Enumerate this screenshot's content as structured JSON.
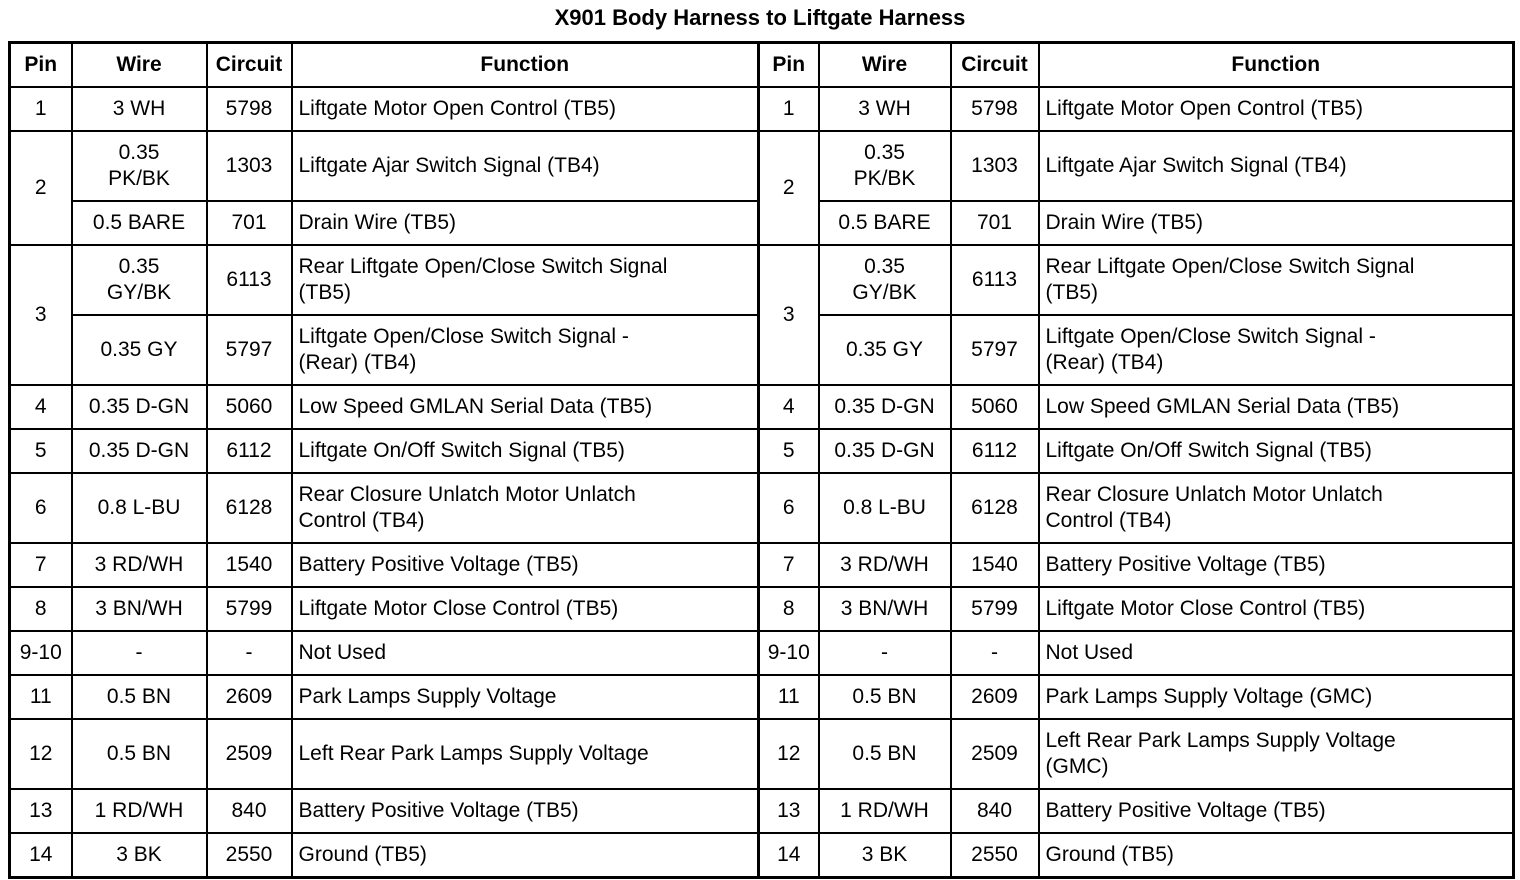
{
  "title": "X901 Body Harness to Liftgate Harness",
  "table": {
    "headers": [
      "Pin",
      "Wire",
      "Circuit",
      "Function",
      "Pin",
      "Wire",
      "Circuit",
      "Function"
    ],
    "rows": [
      [
        "1",
        "3 WH",
        "5798",
        "Liftgate Motor Open Control (TB5)",
        "1",
        "3 WH",
        "5798",
        "Liftgate Motor Open Control (TB5)"
      ],
      [
        {
          "text": "2",
          "rowspan": 2
        },
        "0.35\nPK/BK",
        "1303",
        "Liftgate Ajar Switch Signal (TB4)",
        {
          "text": "2",
          "rowspan": 2
        },
        "0.35\nPK/BK",
        "1303",
        "Liftgate Ajar Switch Signal (TB4)"
      ],
      [
        "0.5 BARE",
        "701",
        "Drain Wire (TB5)",
        "0.5 BARE",
        "701",
        "Drain Wire (TB5)"
      ],
      [
        {
          "text": "3",
          "rowspan": 2
        },
        "0.35\nGY/BK",
        "6113",
        "Rear Liftgate Open/Close Switch Signal\n(TB5)",
        {
          "text": "3",
          "rowspan": 2
        },
        "0.35\nGY/BK",
        "6113",
        "Rear Liftgate Open/Close Switch Signal\n(TB5)"
      ],
      [
        "0.35 GY",
        "5797",
        "Liftgate Open/Close Switch Signal -\n(Rear) (TB4)",
        "0.35 GY",
        "5797",
        "Liftgate Open/Close Switch Signal -\n(Rear) (TB4)"
      ],
      [
        "4",
        "0.35 D-GN",
        "5060",
        "Low Speed GMLAN Serial Data (TB5)",
        "4",
        "0.35 D-GN",
        "5060",
        "Low Speed GMLAN Serial Data (TB5)"
      ],
      [
        "5",
        "0.35 D-GN",
        "6112",
        "Liftgate On/Off Switch Signal (TB5)",
        "5",
        "0.35 D-GN",
        "6112",
        "Liftgate On/Off Switch Signal (TB5)"
      ],
      [
        "6",
        "0.8 L-BU",
        "6128",
        "Rear Closure Unlatch Motor Unlatch\nControl (TB4)",
        "6",
        "0.8 L-BU",
        "6128",
        "Rear Closure Unlatch Motor Unlatch\nControl (TB4)"
      ],
      [
        "7",
        "3 RD/WH",
        "1540",
        "Battery Positive Voltage (TB5)",
        "7",
        "3 RD/WH",
        "1540",
        "Battery Positive Voltage (TB5)"
      ],
      [
        "8",
        "3 BN/WH",
        "5799",
        "Liftgate Motor Close Control (TB5)",
        "8",
        "3 BN/WH",
        "5799",
        "Liftgate Motor Close Control (TB5)"
      ],
      [
        "9-10",
        "-",
        "-",
        "Not Used",
        "9-10",
        "-",
        "-",
        "Not Used"
      ],
      [
        "11",
        "0.5 BN",
        "2609",
        "Park Lamps Supply Voltage",
        "11",
        "0.5 BN",
        "2609",
        "Park Lamps Supply Voltage (GMC)"
      ],
      [
        "12",
        "0.5 BN",
        "2509",
        "Left Rear Park Lamps Supply Voltage",
        "12",
        "0.5 BN",
        "2509",
        "Left Rear Park Lamps Supply Voltage\n(GMC)"
      ],
      [
        "13",
        "1 RD/WH",
        "840",
        "Battery Positive Voltage (TB5)",
        "13",
        "1 RD/WH",
        "840",
        "Battery Positive Voltage (TB5)"
      ],
      [
        "14",
        "3 BK",
        "2550",
        "Ground (TB5)",
        "14",
        "3 BK",
        "2550",
        "Ground (TB5)"
      ]
    ]
  }
}
